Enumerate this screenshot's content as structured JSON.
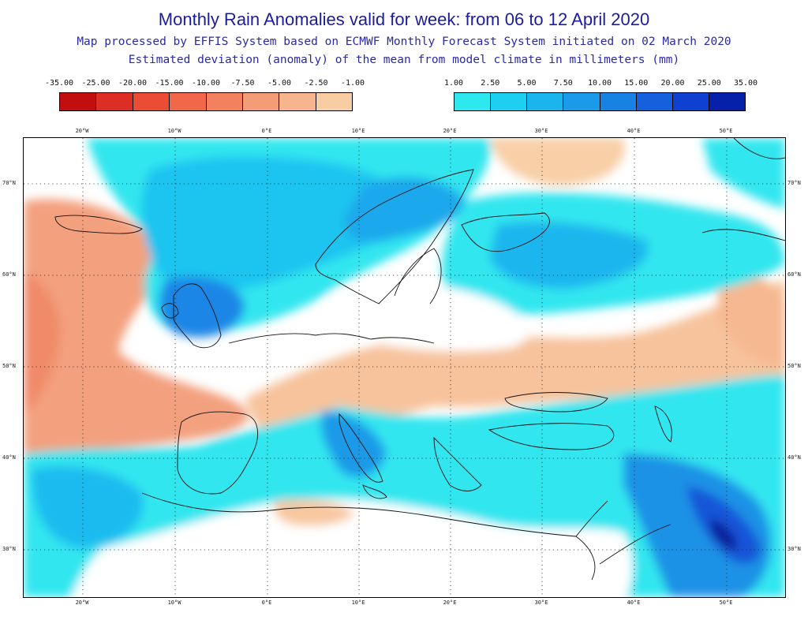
{
  "title": "Monthly Rain Anomalies valid for week: from 06 to 12 April 2020",
  "subtitle_line1": "Map processed by EFFIS System based on ECMWF Monthly Forecast System initiated on 02 March 2020",
  "subtitle_line2": "Estimated deviation (anomaly) of the mean from model climate in millimeters (mm)",
  "legend_negative": {
    "labels": [
      "-35.00",
      "-25.00",
      "-20.00",
      "-15.00",
      "-10.00",
      "-7.50",
      "-5.00",
      "-2.50",
      "-1.00"
    ],
    "colors": [
      "#c20e0e",
      "#dc2e24",
      "#ea4c34",
      "#f0674a",
      "#f3805f",
      "#f49c78",
      "#f6b58e",
      "#f8cda4"
    ]
  },
  "legend_positive": {
    "labels": [
      "1.00",
      "2.50",
      "5.00",
      "7.50",
      "10.00",
      "15.00",
      "20.00",
      "25.00",
      "35.00"
    ],
    "colors": [
      "#2ee8f0",
      "#1dd0f2",
      "#1bb5ee",
      "#1a9ae8",
      "#1781e4",
      "#1560dd",
      "#1040d0",
      "#0620aa"
    ]
  },
  "map": {
    "longitude_labels": [
      "20°W",
      "10°W",
      "0°E",
      "10°E",
      "20°E",
      "30°E",
      "40°E",
      "50°E"
    ],
    "latitude_labels": [
      "70°N",
      "60°N",
      "50°N",
      "40°N",
      "30°N"
    ]
  }
}
